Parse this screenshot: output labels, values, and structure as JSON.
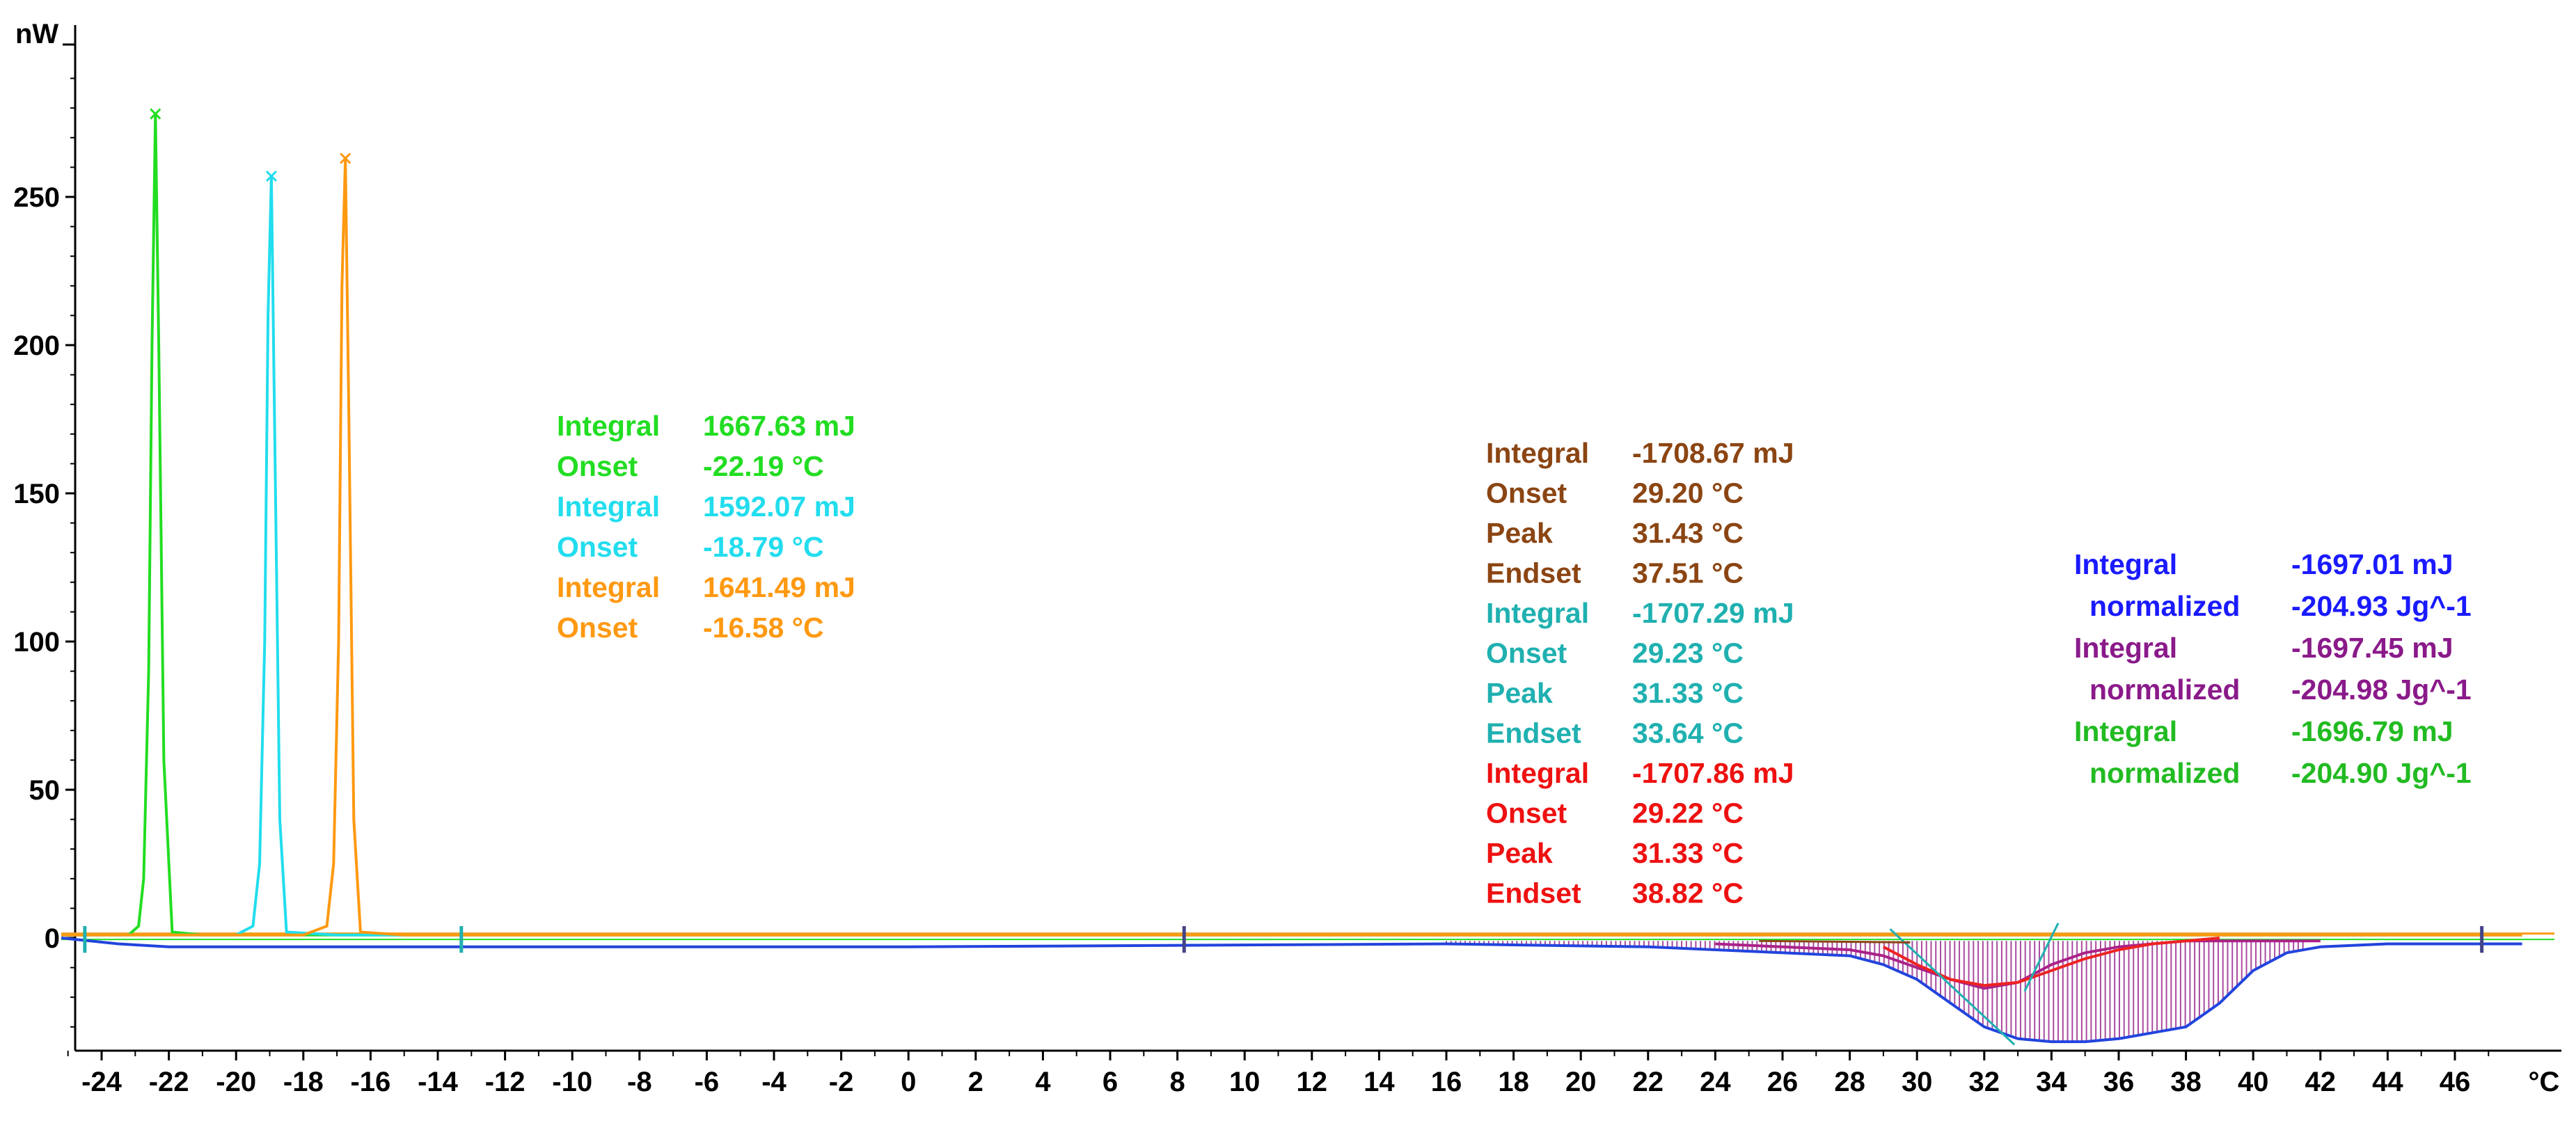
{
  "chart_data": {
    "type": "line",
    "title": "",
    "xlabel": "°C",
    "ylabel": "nW",
    "xlim": [
      -25.5,
      48.5
    ],
    "ylim": [
      -38,
      310
    ],
    "x_ticks": [
      -24,
      -22,
      -20,
      -18,
      -16,
      -14,
      -12,
      -10,
      -8,
      -6,
      -4,
      -2,
      0,
      2,
      4,
      6,
      8,
      10,
      12,
      14,
      16,
      18,
      20,
      22,
      24,
      26,
      28,
      30,
      32,
      34,
      36,
      38,
      40,
      42,
      44,
      46
    ],
    "y_ticks": [
      0,
      50,
      100,
      150,
      200,
      250
    ],
    "grid": false,
    "series": [
      {
        "color": "#22dd22",
        "x": [
          -25.2,
          -24,
          -23.2,
          -22.9,
          -22.75,
          -22.6,
          -22.5,
          -22.4,
          -22.3,
          -22.15,
          -21.9,
          -21,
          -10,
          0,
          10,
          20,
          30,
          40,
          48
        ],
        "values": [
          1,
          1,
          1,
          4,
          20,
          90,
          200,
          278,
          200,
          60,
          2,
          1,
          1,
          1,
          1,
          1,
          1,
          1,
          1
        ]
      },
      {
        "color": "#22ddee",
        "x": [
          -25.2,
          -24,
          -20,
          -19.5,
          -19.3,
          -19.15,
          -19.05,
          -18.95,
          -18.85,
          -18.7,
          -18.5,
          -17,
          -10,
          0,
          10,
          20,
          30,
          40,
          48
        ],
        "values": [
          1,
          1,
          1,
          4,
          25,
          100,
          210,
          257,
          170,
          40,
          2,
          1,
          1,
          1,
          1,
          1,
          1,
          1,
          1
        ]
      },
      {
        "color": "#ff9911",
        "x": [
          -25.2,
          -24,
          -18,
          -17.3,
          -17.1,
          -16.95,
          -16.85,
          -16.75,
          -16.65,
          -16.5,
          -16.3,
          -15,
          -10,
          0,
          10,
          20,
          30,
          40,
          48
        ],
        "values": [
          1,
          1,
          1,
          4,
          25,
          100,
          220,
          263,
          180,
          40,
          2,
          1,
          1,
          1,
          1,
          1,
          1,
          1,
          1
        ]
      },
      {
        "color": "#2244dd",
        "x": [
          -25.2,
          -23.5,
          -22,
          0,
          16,
          22,
          24,
          26,
          28,
          29,
          30,
          31,
          32,
          33,
          34,
          35,
          36,
          37,
          38,
          39,
          40,
          41,
          42,
          44,
          48
        ],
        "values": [
          0,
          -2,
          -3,
          -3,
          -2,
          -3,
          -4,
          -5,
          -6,
          -9,
          -14,
          -22,
          -30,
          -34,
          -35,
          -35,
          -34,
          -32,
          -30,
          -22,
          -11,
          -5,
          -3,
          -2,
          -2
        ]
      },
      {
        "color": "#aa2288",
        "x": [
          24,
          26,
          28,
          29,
          30,
          31,
          32,
          33,
          34,
          35,
          36,
          37,
          38,
          39,
          40,
          41,
          42
        ],
        "values": [
          -2,
          -3,
          -4,
          -6,
          -10,
          -14,
          -17,
          -15,
          -9,
          -5,
          -3,
          -2,
          -1,
          -1,
          -1,
          -1,
          -1
        ]
      },
      {
        "color": "#ee2222",
        "x": [
          29,
          30,
          31,
          32,
          33,
          34,
          35,
          36,
          37,
          38,
          39
        ],
        "values": [
          -3,
          -9,
          -14,
          -16,
          -15,
          -11,
          -7,
          -4,
          -2,
          -1,
          0
        ]
      }
    ],
    "annotations": [
      {
        "label": "Integral",
        "value": "1667.63 mJ",
        "color": "#22dd22"
      },
      {
        "label": "Onset",
        "value": "-22.19 °C",
        "color": "#22dd22"
      },
      {
        "label": "Integral",
        "value": "1592.07 mJ",
        "color": "#22ddee"
      },
      {
        "label": "Onset",
        "value": "-18.79 °C",
        "color": "#22ddee"
      },
      {
        "label": "Integral",
        "value": "1641.49 mJ",
        "color": "#ff9911"
      },
      {
        "label": "Onset",
        "value": "-16.58 °C",
        "color": "#ff9911"
      },
      {
        "label": "Integral",
        "value": "-1708.67 mJ",
        "color": "#8b4513"
      },
      {
        "label": "Onset",
        "value": "29.20 °C",
        "color": "#8b4513"
      },
      {
        "label": "Peak",
        "value": "31.43 °C",
        "color": "#8b4513"
      },
      {
        "label": "Endset",
        "value": "37.51 °C",
        "color": "#8b4513"
      },
      {
        "label": "Integral",
        "value": "-1707.29 mJ",
        "color": "#20b0b0"
      },
      {
        "label": "Onset",
        "value": "29.23 °C",
        "color": "#20b0b0"
      },
      {
        "label": "Peak",
        "value": "31.33 °C",
        "color": "#20b0b0"
      },
      {
        "label": "Endset",
        "value": "33.64 °C",
        "color": "#20b0b0"
      },
      {
        "label": "Integral",
        "value": "-1707.86 mJ",
        "color": "#ee1111"
      },
      {
        "label": "Onset",
        "value": "29.22 °C",
        "color": "#ee1111"
      },
      {
        "label": "Peak",
        "value": "31.33 °C",
        "color": "#ee1111"
      },
      {
        "label": "Endset",
        "value": "38.82 °C",
        "color": "#ee1111"
      },
      {
        "label": "Integral",
        "value": "-1697.01 mJ",
        "color": "#1a1aff"
      },
      {
        "label": "normalized",
        "value": "-204.93 Jg^-1",
        "color": "#1a1aff"
      },
      {
        "label": "Integral",
        "value": "-1697.45 mJ",
        "color": "#8a1a8a"
      },
      {
        "label": "normalized",
        "value": "-204.98 Jg^-1",
        "color": "#8a1a8a"
      },
      {
        "label": "Integral",
        "value": "-1696.79 mJ",
        "color": "#22bb22"
      },
      {
        "label": "normalized",
        "value": "-204.90 Jg^-1",
        "color": "#22bb22"
      }
    ]
  }
}
